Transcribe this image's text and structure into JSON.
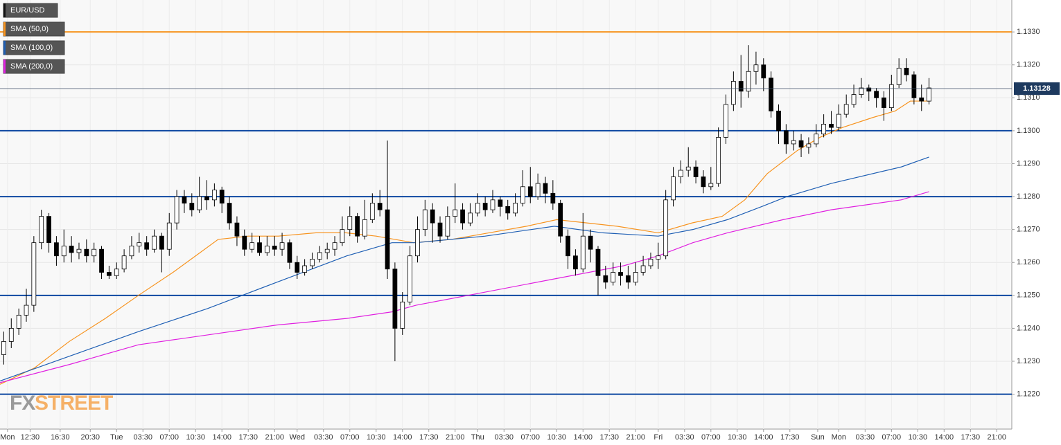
{
  "chart_data": {
    "type": "candlestick",
    "series": [
      {
        "name": "EUR/USD",
        "type": "candlestick",
        "color": "#000000",
        "up_color": "#ffffff",
        "x": [
          0.5,
          1.5,
          2.5,
          3.5,
          4.5,
          5.5,
          6.5,
          7.5,
          8.5,
          9.5,
          10.5,
          11.5,
          12.5,
          13.5,
          14.5,
          15.5,
          16.5,
          17.5,
          18.5,
          19.5,
          20.5,
          21.5,
          22.5,
          23.5,
          24.5,
          25.5,
          26.5,
          27.5,
          28.5,
          29.5,
          30.5,
          31.5,
          32.5,
          33.5,
          34.5,
          35.5,
          36.5,
          37.5,
          38.5,
          39.5,
          40.5,
          41.5,
          42.5,
          43.5,
          44.5,
          45.5,
          46.5,
          47.5,
          48.5,
          49.5,
          50.5,
          51.5,
          52.5,
          53.5,
          54.5,
          55.5,
          56.5,
          57.5,
          58.5,
          59.5,
          60.5,
          61.5,
          62.5,
          63.5,
          64.5,
          65.5,
          66.5,
          67.5,
          68.5,
          69.5,
          70.5,
          71.5,
          72.5,
          73.5,
          74.5,
          75.5,
          76.5,
          77.5,
          78.5,
          79.5,
          80.5,
          81.5,
          82.5,
          83.5,
          84.5,
          85.5,
          86.5,
          87.5,
          88.5,
          89.5,
          90.5,
          91.5,
          92.5,
          93.5,
          94.5,
          95.5,
          96.5,
          97.5,
          98.5,
          99.5,
          100.5,
          101.5,
          102.5,
          103.5,
          104.5,
          105.5,
          106.5,
          107.5,
          108.5,
          109.5,
          110.5,
          111.5,
          112.5,
          113.5,
          114.5,
          115.5,
          116.5,
          117.5,
          118.5,
          119.5,
          120.5,
          121.5,
          122.5,
          123.5
        ],
        "open": [
          1.1232,
          1.1236,
          1.124,
          1.1244,
          1.1247,
          1.1266,
          1.1274,
          1.1266,
          1.1262,
          1.1265,
          1.1263,
          1.1264,
          1.1262,
          1.1264,
          1.1257,
          1.1256,
          1.1258,
          1.1262,
          1.1265,
          1.1266,
          1.1264,
          1.1268,
          1.1264,
          1.1272,
          1.128,
          1.1278,
          1.1276,
          1.128,
          1.1279,
          1.1282,
          1.1278,
          1.1272,
          1.1268,
          1.1264,
          1.1266,
          1.1263,
          1.1265,
          1.1264,
          1.1266,
          1.126,
          1.1257,
          1.1259,
          1.1261,
          1.1263,
          1.1264,
          1.1266,
          1.127,
          1.1274,
          1.1268,
          1.1273,
          1.1278,
          1.1276,
          1.1258,
          1.124,
          1.1248,
          1.1262,
          1.127,
          1.1276,
          1.1272,
          1.1268,
          1.1274,
          1.1276,
          1.1272,
          1.1275,
          1.1278,
          1.1276,
          1.1279,
          1.1277,
          1.1275,
          1.1278,
          1.1283,
          1.128,
          1.1284,
          1.1281,
          1.1278,
          1.1268,
          1.1262,
          1.1258,
          1.1268,
          1.1264,
          1.1256,
          1.1254,
          1.1257,
          1.1256,
          1.1254,
          1.1257,
          1.1259,
          1.1261,
          1.1262,
          1.1279,
          1.1286,
          1.1288,
          1.1289,
          1.1286,
          1.1283,
          1.1284,
          1.1298,
          1.1308,
          1.1315,
          1.1312,
          1.1318,
          1.132,
          1.1316,
          1.1306,
          1.13,
          1.1296,
          1.1297,
          1.1295,
          1.1296,
          1.1299,
          1.1302,
          1.1301,
          1.1305,
          1.1308,
          1.1311,
          1.1313,
          1.1312,
          1.131,
          1.1307,
          1.1314,
          1.1319,
          1.1317,
          1.131,
          1.1309
        ],
        "high": [
          1.1239,
          1.1243,
          1.1246,
          1.1252,
          1.1268,
          1.1276,
          1.1275,
          1.1268,
          1.127,
          1.1268,
          1.1266,
          1.1267,
          1.1266,
          1.1265,
          1.1259,
          1.126,
          1.1264,
          1.1268,
          1.1269,
          1.1268,
          1.127,
          1.1269,
          1.1275,
          1.1282,
          1.1282,
          1.1281,
          1.1286,
          1.1285,
          1.1284,
          1.1283,
          1.128,
          1.1274,
          1.127,
          1.1269,
          1.1268,
          1.1268,
          1.1268,
          1.1269,
          1.1267,
          1.1262,
          1.1261,
          1.1263,
          1.1265,
          1.1266,
          1.1268,
          1.1274,
          1.1277,
          1.1275,
          1.1279,
          1.1281,
          1.1282,
          1.1297,
          1.126,
          1.1251,
          1.1265,
          1.1274,
          1.1279,
          1.1278,
          1.1274,
          1.1277,
          1.1284,
          1.1278,
          1.1278,
          1.1281,
          1.128,
          1.1282,
          1.128,
          1.1279,
          1.1281,
          1.1288,
          1.1289,
          1.1287,
          1.1286,
          1.1285,
          1.1279,
          1.127,
          1.1264,
          1.1275,
          1.127,
          1.1265,
          1.1259,
          1.126,
          1.126,
          1.1259,
          1.126,
          1.1262,
          1.1263,
          1.1266,
          1.1282,
          1.1289,
          1.1291,
          1.1295,
          1.1291,
          1.1288,
          1.1289,
          1.1301,
          1.1311,
          1.1318,
          1.1323,
          1.1326,
          1.1324,
          1.1322,
          1.1318,
          1.1308,
          1.1302,
          1.13,
          1.1299,
          1.1298,
          1.1302,
          1.1305,
          1.1306,
          1.1308,
          1.1311,
          1.1314,
          1.1316,
          1.1314,
          1.1313,
          1.1312,
          1.1317,
          1.1322,
          1.1322,
          1.1318,
          1.1314,
          1.1316
        ],
        "low": [
          1.1229,
          1.1234,
          1.1238,
          1.1242,
          1.1245,
          1.1264,
          1.1263,
          1.1259,
          1.126,
          1.126,
          1.1261,
          1.126,
          1.126,
          1.1255,
          1.1255,
          1.1255,
          1.1257,
          1.1261,
          1.1263,
          1.1262,
          1.1263,
          1.1257,
          1.1262,
          1.127,
          1.1275,
          1.1274,
          1.1275,
          1.1276,
          1.1277,
          1.1275,
          1.127,
          1.1265,
          1.1262,
          1.1263,
          1.1262,
          1.1262,
          1.1262,
          1.1262,
          1.1258,
          1.1255,
          1.1256,
          1.1258,
          1.126,
          1.1261,
          1.1262,
          1.1265,
          1.1268,
          1.1266,
          1.1267,
          1.1272,
          1.1274,
          1.1255,
          1.123,
          1.1238,
          1.1247,
          1.126,
          1.1268,
          1.1266,
          1.1266,
          1.1267,
          1.1272,
          1.127,
          1.1271,
          1.1274,
          1.1274,
          1.1275,
          1.1274,
          1.1273,
          1.1274,
          1.1277,
          1.1278,
          1.1279,
          1.1278,
          1.1276,
          1.1266,
          1.1258,
          1.1256,
          1.1257,
          1.126,
          1.125,
          1.1252,
          1.1253,
          1.1253,
          1.1252,
          1.1253,
          1.1256,
          1.1258,
          1.1258,
          1.1261,
          1.1277,
          1.1284,
          1.1286,
          1.1284,
          1.1281,
          1.1282,
          1.1283,
          1.1296,
          1.1306,
          1.1307,
          1.131,
          1.1314,
          1.1312,
          1.1304,
          1.1296,
          1.1293,
          1.1294,
          1.1292,
          1.1293,
          1.1295,
          1.1298,
          1.1299,
          1.13,
          1.1304,
          1.1307,
          1.131,
          1.1309,
          1.1307,
          1.1303,
          1.1306,
          1.1313,
          1.1315,
          1.1308,
          1.1306,
          1.1308
        ],
        "close": [
          1.1236,
          1.124,
          1.1244,
          1.1247,
          1.1266,
          1.1274,
          1.1266,
          1.1262,
          1.1265,
          1.1263,
          1.1264,
          1.1262,
          1.1264,
          1.1257,
          1.1256,
          1.1258,
          1.1262,
          1.1265,
          1.1266,
          1.1264,
          1.1268,
          1.1264,
          1.1272,
          1.128,
          1.1278,
          1.1276,
          1.128,
          1.1279,
          1.1282,
          1.1278,
          1.1272,
          1.1268,
          1.1264,
          1.1266,
          1.1263,
          1.1265,
          1.1264,
          1.1266,
          1.126,
          1.1257,
          1.1259,
          1.1261,
          1.1263,
          1.1264,
          1.1266,
          1.127,
          1.1274,
          1.1268,
          1.1273,
          1.1278,
          1.1276,
          1.1258,
          1.124,
          1.1248,
          1.1262,
          1.127,
          1.1276,
          1.1272,
          1.1268,
          1.1274,
          1.1276,
          1.1272,
          1.1275,
          1.1278,
          1.1276,
          1.1279,
          1.1277,
          1.1275,
          1.1278,
          1.1283,
          1.128,
          1.1284,
          1.1281,
          1.1278,
          1.1268,
          1.1262,
          1.1258,
          1.1268,
          1.1264,
          1.1256,
          1.1254,
          1.1257,
          1.1256,
          1.1254,
          1.1257,
          1.1259,
          1.1261,
          1.1262,
          1.1279,
          1.1286,
          1.1288,
          1.1289,
          1.1286,
          1.1283,
          1.1284,
          1.1298,
          1.1308,
          1.1315,
          1.1312,
          1.1318,
          1.132,
          1.1316,
          1.1306,
          1.13,
          1.1296,
          1.1297,
          1.1295,
          1.1296,
          1.1299,
          1.1302,
          1.1301,
          1.1305,
          1.1308,
          1.1311,
          1.1313,
          1.1312,
          1.131,
          1.1307,
          1.1314,
          1.1319,
          1.1317,
          1.131,
          1.1309,
          1.1313
        ]
      },
      {
        "name": "SMA (50,0)",
        "type": "line",
        "color": "#f7931e",
        "x": [
          0,
          4.6,
          9.2,
          14,
          18.4,
          23,
          26,
          29,
          33,
          37,
          42,
          46,
          50,
          55,
          60,
          65,
          70,
          74,
          78,
          82,
          87.5,
          92,
          96,
          99,
          102,
          106,
          109,
          112,
          116,
          119,
          121,
          123.5
        ],
        "values": [
          1.1223,
          1.1228,
          1.1236,
          1.1243,
          1.125,
          1.1257,
          1.1262,
          1.1267,
          1.1268,
          1.1268,
          1.1269,
          1.1269,
          1.1268,
          1.1266,
          1.1267,
          1.1269,
          1.1271,
          1.1273,
          1.1272,
          1.1271,
          1.1269,
          1.1272,
          1.1274,
          1.1279,
          1.1287,
          1.1294,
          1.1298,
          1.1301,
          1.1304,
          1.1306,
          1.1309,
          1.1309
        ]
      },
      {
        "name": "SMA (100,0)",
        "type": "line",
        "color": "#1f5fb4",
        "x": [
          0,
          9.2,
          18.4,
          27.6,
          36.8,
          46.1,
          52.1,
          55.3,
          64.5,
          73.7,
          80.1,
          87.5,
          92.1,
          96.7,
          101.3,
          104.6,
          110.5,
          119.8,
          123.5
        ],
        "values": [
          1.1224,
          1.12315,
          1.1239,
          1.1246,
          1.1254,
          1.1262,
          1.1266,
          1.1266,
          1.1268,
          1.1271,
          1.1269,
          1.1268,
          1.127,
          1.1273,
          1.1277,
          1.128,
          1.1284,
          1.1289,
          1.1292
        ]
      },
      {
        "name": "SMA (200,0)",
        "type": "line",
        "color": "#e020e0",
        "x": [
          0,
          9.2,
          18.4,
          27.6,
          36.8,
          46.1,
          52.1,
          55.3,
          64.5,
          73.7,
          82.9,
          87.5,
          92.1,
          96.7,
          104.1,
          110.5,
          119.8,
          123.5
        ],
        "values": [
          1.12235,
          1.1229,
          1.1235,
          1.1238,
          1.1241,
          1.1243,
          1.1245,
          1.1247,
          1.1251,
          1.1255,
          1.1259,
          1.1262,
          1.1266,
          1.1269,
          1.1273,
          1.1276,
          1.1279,
          1.12815
        ]
      }
    ],
    "current_price": 1.13128,
    "levels": [
      {
        "value": 1.133,
        "color": "#f7931e"
      },
      {
        "value": 1.13,
        "color": "#0d47a1"
      },
      {
        "value": 1.128,
        "color": "#0d47a1"
      },
      {
        "value": 1.125,
        "color": "#0d47a1"
      },
      {
        "value": 1.122,
        "color": "#0d47a1"
      }
    ],
    "xlim": [
      0,
      134.5
    ],
    "ylim": [
      1.12094,
      1.13397
    ],
    "yticks": [
      {
        "value": 1.122,
        "label": "1.1220"
      },
      {
        "value": 1.123,
        "label": "1.1230"
      },
      {
        "value": 1.124,
        "label": "1.1240"
      },
      {
        "value": 1.125,
        "label": "1.1250"
      },
      {
        "value": 1.126,
        "label": "1.1260"
      },
      {
        "value": 1.127,
        "label": "1.1270"
      },
      {
        "value": 1.128,
        "label": "1.1280"
      },
      {
        "value": 1.129,
        "label": "1.1290"
      },
      {
        "value": 1.13,
        "label": "1.1300"
      },
      {
        "value": 1.131,
        "label": "1.1310"
      },
      {
        "value": 1.132,
        "label": "1.1320"
      },
      {
        "value": 1.133,
        "label": "1.1330"
      }
    ],
    "xticks": [
      {
        "value": 1,
        "label": "Mon"
      },
      {
        "value": 4,
        "label": "12:30"
      },
      {
        "value": 8,
        "label": "16:30"
      },
      {
        "value": 12,
        "label": "20:30"
      },
      {
        "value": 15.5,
        "label": "Tue"
      },
      {
        "value": 19,
        "label": "03:30"
      },
      {
        "value": 22.5,
        "label": "07:00"
      },
      {
        "value": 26,
        "label": "10:30"
      },
      {
        "value": 29.5,
        "label": "14:00"
      },
      {
        "value": 33,
        "label": "17:30"
      },
      {
        "value": 36.5,
        "label": "21:00"
      },
      {
        "value": 39.5,
        "label": "Wed"
      },
      {
        "value": 43,
        "label": "03:30"
      },
      {
        "value": 46.5,
        "label": "07:00"
      },
      {
        "value": 50,
        "label": "10:30"
      },
      {
        "value": 53.5,
        "label": "14:00"
      },
      {
        "value": 57,
        "label": "17:30"
      },
      {
        "value": 60.5,
        "label": "21:00"
      },
      {
        "value": 63.5,
        "label": "Thu"
      },
      {
        "value": 67,
        "label": "03:30"
      },
      {
        "value": 70.5,
        "label": "07:00"
      },
      {
        "value": 74,
        "label": "10:30"
      },
      {
        "value": 77.5,
        "label": "14:00"
      },
      {
        "value": 81,
        "label": "17:30"
      },
      {
        "value": 84.5,
        "label": "21:00"
      },
      {
        "value": 87.5,
        "label": "Fri"
      },
      {
        "value": 91,
        "label": "03:30"
      },
      {
        "value": 94.5,
        "label": "07:00"
      },
      {
        "value": 98,
        "label": "10:30"
      },
      {
        "value": 101.5,
        "label": "14:00"
      },
      {
        "value": 105,
        "label": "17:30"
      },
      {
        "value": 108.7,
        "label": "Sun"
      },
      {
        "value": 111.5,
        "label": "Mon"
      },
      {
        "value": 115,
        "label": "03:30"
      },
      {
        "value": 118.5,
        "label": "07:00"
      },
      {
        "value": 122,
        "label": "10:30"
      },
      {
        "value": 125.5,
        "label": "14:00"
      },
      {
        "value": 129,
        "label": "17:30"
      },
      {
        "value": 132.5,
        "label": "21:00"
      }
    ],
    "grid": true,
    "logo": {
      "fx": "FX",
      "street": "STREET"
    }
  }
}
